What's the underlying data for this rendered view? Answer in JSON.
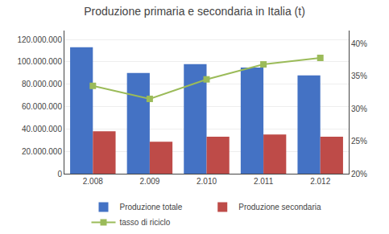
{
  "chart_data": {
    "type": "bar",
    "title": "Produzione primaria e secondaria in Italia (t)",
    "categories": [
      "2.008",
      "2.009",
      "2.010",
      "2.011",
      "2.012"
    ],
    "series": [
      {
        "name": "Produzione totale",
        "color": "#4472C4",
        "values": [
          113000000,
          90000000,
          98000000,
          95000000,
          88000000
        ]
      },
      {
        "name": "Produzione secondaria",
        "color": "#BE4B48",
        "values": [
          38000000,
          28500000,
          33000000,
          35000000,
          33000000
        ]
      },
      {
        "name": "tasso di riciclo",
        "type": "line",
        "axis": "y2",
        "color": "#9BBB59",
        "marker": "square",
        "values": [
          0.335,
          0.315,
          0.345,
          0.368,
          0.378
        ]
      }
    ],
    "ylim": [
      0,
      128000000
    ],
    "yticks": [
      0,
      {
        "value": 20000000,
        "label": "20.000.000"
      },
      {
        "value": 40000000,
        "label": "40.000.000"
      },
      {
        "value": 60000000,
        "label": "60.000.000"
      },
      {
        "value": 80000000,
        "label": "80.000.000"
      },
      {
        "value": 100000000,
        "label": "100.000.000"
      },
      {
        "value": 120000000,
        "label": "120.000.000"
      }
    ],
    "y2lim": [
      0.2,
      0.42
    ],
    "y2ticks": [
      {
        "value": 0.2,
        "label": "20%"
      },
      {
        "value": 0.25,
        "label": "25%"
      },
      {
        "value": 0.3,
        "label": "30%"
      },
      {
        "value": 0.35,
        "label": "35%"
      },
      {
        "value": 0.4,
        "label": "40%"
      }
    ],
    "grid": true,
    "legend": "bottom"
  }
}
